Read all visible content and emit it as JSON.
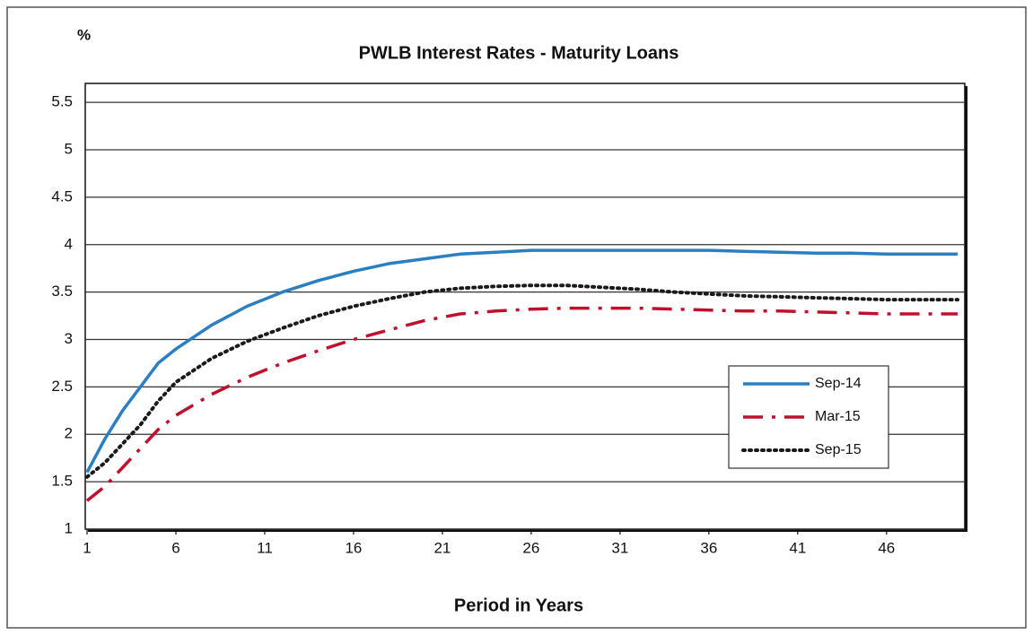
{
  "chart_data": {
    "type": "line",
    "title": "PWLB Interest Rates - Maturity Loans",
    "y_label": "%",
    "x_label": "Period in Years",
    "x": [
      1,
      2,
      3,
      4,
      5,
      6,
      8,
      10,
      12,
      14,
      16,
      18,
      20,
      22,
      24,
      26,
      28,
      30,
      32,
      34,
      36,
      38,
      40,
      42,
      44,
      46,
      48,
      50
    ],
    "series": [
      {
        "name": "Sep-14",
        "color": "#2a7fc1",
        "style": "solid",
        "values": [
          1.6,
          1.95,
          2.25,
          2.5,
          2.75,
          2.9,
          3.15,
          3.35,
          3.5,
          3.62,
          3.72,
          3.8,
          3.85,
          3.9,
          3.92,
          3.94,
          3.94,
          3.94,
          3.94,
          3.94,
          3.94,
          3.93,
          3.92,
          3.91,
          3.91,
          3.9,
          3.9,
          3.9
        ]
      },
      {
        "name": "Mar-15",
        "color": "#c0102c",
        "style": "dashdot",
        "values": [
          1.3,
          1.45,
          1.65,
          1.85,
          2.05,
          2.2,
          2.42,
          2.6,
          2.75,
          2.88,
          3.0,
          3.1,
          3.2,
          3.27,
          3.3,
          3.32,
          3.33,
          3.33,
          3.33,
          3.32,
          3.31,
          3.3,
          3.3,
          3.29,
          3.28,
          3.27,
          3.27,
          3.27
        ]
      },
      {
        "name": "Sep-15",
        "color": "#1a1a1a",
        "style": "dotted",
        "values": [
          1.55,
          1.7,
          1.9,
          2.1,
          2.35,
          2.55,
          2.8,
          2.98,
          3.12,
          3.25,
          3.35,
          3.43,
          3.5,
          3.54,
          3.56,
          3.57,
          3.57,
          3.55,
          3.53,
          3.5,
          3.48,
          3.46,
          3.45,
          3.44,
          3.43,
          3.42,
          3.42,
          3.42
        ]
      }
    ],
    "xlim": [
      1,
      50
    ],
    "xticks": [
      1,
      6,
      11,
      16,
      21,
      26,
      31,
      36,
      41,
      46
    ],
    "ylim": [
      1,
      5.7
    ],
    "yticks": [
      1,
      1.5,
      2,
      2.5,
      3,
      3.5,
      4,
      4.5,
      5,
      5.5
    ],
    "grid": true,
    "legend": "right"
  }
}
